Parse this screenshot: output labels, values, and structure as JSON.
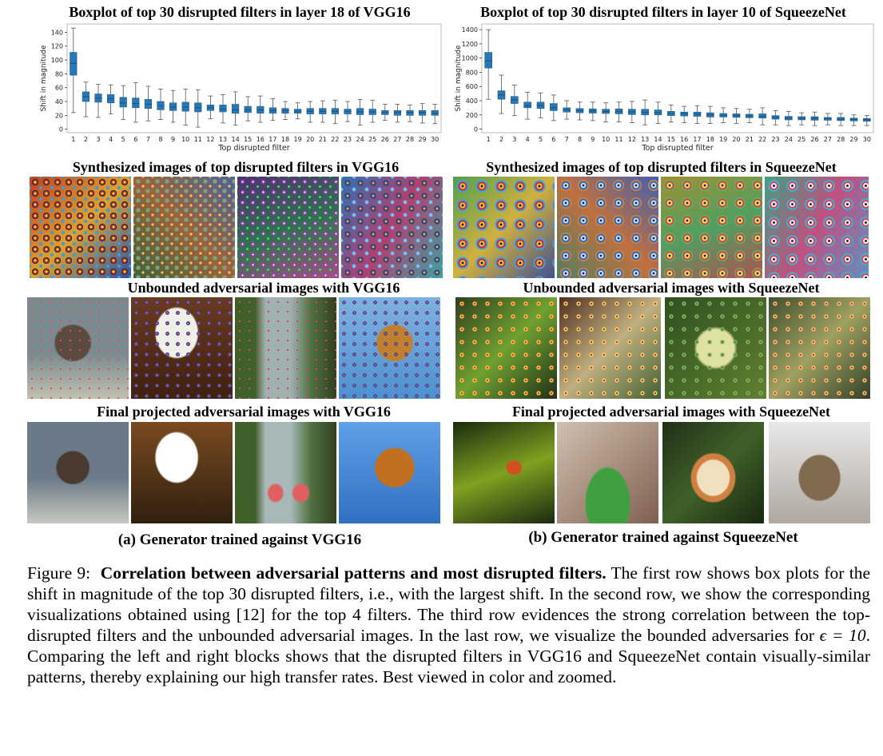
{
  "figures": {
    "vgg": {
      "plot_title": "Boxplot of top 30 disrupted filters in layer 18 of VGG16",
      "row2_title": "Synthesized images of top disrupted filters in VGG16",
      "row3_title": "Unbounded adversarial images with VGG16",
      "row4_title": "Final projected adversarial images with VGG16",
      "subcaption": "(a) Generator trained against VGG16"
    },
    "squeeze": {
      "plot_title": "Boxplot of top 30 disrupted filters in layer 10 of SqueezeNet",
      "row2_title": "Synthesized images of top disrupted filters in SqueezeNet",
      "row3_title": "Unbounded adversarial images with SqueezeNet",
      "row4_title": "Final projected adversarial images with SqueezeNet",
      "subcaption": "(b) Generator trained against SqueezeNet"
    }
  },
  "caption": {
    "label": "Figure 9:",
    "bold": "Correlation between adversarial patterns and most disrupted filters.",
    "body_1": " The first row shows box plots for the shift in magnitude of the top 30 disrupted filters, i.e., with the largest shift. In the second row, we show the corresponding visualizations obtained using [12] for the top 4 filters. The third row evidences the strong correlation between the top-disrupted filters and the unbounded adversarial images. In the last row, we visualize the bounded adversaries for ",
    "epsilon": "ϵ = 10",
    "body_2": ". Comparing the left and right blocks shows that the disrupted filters in VGG16 and SqueezeNet contain visually-similar patterns, thereby explaining our high transfer rates. Best viewed in color and zoomed."
  },
  "colors": {
    "box": "#2878b5",
    "whisker": "#555555"
  },
  "chart_data": [
    {
      "type": "boxplot",
      "xlabel": "Top disrupted filter",
      "ylabel": "Shift in magnitude",
      "categories": [
        "1",
        "2",
        "3",
        "4",
        "5",
        "6",
        "7",
        "8",
        "9",
        "10",
        "11",
        "12",
        "13",
        "14",
        "15",
        "16",
        "17",
        "18",
        "19",
        "20",
        "21",
        "22",
        "23",
        "24",
        "25",
        "26",
        "27",
        "28",
        "29",
        "30"
      ],
      "yticks": [
        0,
        20,
        40,
        60,
        80,
        100,
        120,
        140
      ],
      "ylim": [
        -5,
        152
      ],
      "boxes": [
        {
          "q1": 78,
          "med": 95,
          "q3": 111,
          "lo": 24,
          "hi": 146
        },
        {
          "q1": 40,
          "med": 47,
          "q3": 54,
          "lo": 18,
          "hi": 68
        },
        {
          "q1": 39,
          "med": 45,
          "q3": 51,
          "lo": 17,
          "hi": 65
        },
        {
          "q1": 38,
          "med": 44,
          "q3": 50,
          "lo": 22,
          "hi": 64
        },
        {
          "q1": 32,
          "med": 38,
          "q3": 46,
          "lo": 14,
          "hi": 63
        },
        {
          "q1": 31,
          "med": 37,
          "q3": 45,
          "lo": 10,
          "hi": 67
        },
        {
          "q1": 30,
          "med": 36,
          "q3": 43,
          "lo": 12,
          "hi": 62
        },
        {
          "q1": 28,
          "med": 34,
          "q3": 40,
          "lo": 14,
          "hi": 58
        },
        {
          "q1": 27,
          "med": 32,
          "q3": 38,
          "lo": 10,
          "hi": 56
        },
        {
          "q1": 26,
          "med": 32,
          "q3": 39,
          "lo": 6,
          "hi": 58
        },
        {
          "q1": 25,
          "med": 31,
          "q3": 38,
          "lo": 3,
          "hi": 57
        },
        {
          "q1": 27,
          "med": 31,
          "q3": 35,
          "lo": 15,
          "hi": 48
        },
        {
          "q1": 25,
          "med": 29,
          "q3": 35,
          "lo": 9,
          "hi": 50
        },
        {
          "q1": 23,
          "med": 28,
          "q3": 36,
          "lo": 6,
          "hi": 54
        },
        {
          "q1": 24,
          "med": 28,
          "q3": 33,
          "lo": 12,
          "hi": 47
        },
        {
          "q1": 23,
          "med": 28,
          "q3": 33,
          "lo": 10,
          "hi": 48
        },
        {
          "q1": 23,
          "med": 27,
          "q3": 31,
          "lo": 13,
          "hi": 44
        },
        {
          "q1": 23,
          "med": 27,
          "q3": 30,
          "lo": 14,
          "hi": 40
        },
        {
          "q1": 23,
          "med": 26,
          "q3": 29,
          "lo": 15,
          "hi": 38
        },
        {
          "q1": 22,
          "med": 26,
          "q3": 30,
          "lo": 10,
          "hi": 40
        },
        {
          "q1": 22,
          "med": 26,
          "q3": 30,
          "lo": 10,
          "hi": 41
        },
        {
          "q1": 22,
          "med": 26,
          "q3": 30,
          "lo": 8,
          "hi": 42
        },
        {
          "q1": 22,
          "med": 26,
          "q3": 29,
          "lo": 11,
          "hi": 40
        },
        {
          "q1": 21,
          "med": 25,
          "q3": 30,
          "lo": 6,
          "hi": 43
        },
        {
          "q1": 21,
          "med": 25,
          "q3": 29,
          "lo": 10,
          "hi": 42
        },
        {
          "q1": 21,
          "med": 24,
          "q3": 27,
          "lo": 13,
          "hi": 36
        },
        {
          "q1": 20,
          "med": 24,
          "q3": 27,
          "lo": 10,
          "hi": 36
        },
        {
          "q1": 20,
          "med": 24,
          "q3": 27,
          "lo": 11,
          "hi": 35
        },
        {
          "q1": 20,
          "med": 24,
          "q3": 27,
          "lo": 9,
          "hi": 37
        },
        {
          "q1": 20,
          "med": 23,
          "q3": 27,
          "lo": 8,
          "hi": 36
        }
      ]
    },
    {
      "type": "boxplot",
      "xlabel": "Top disrupted filter",
      "ylabel": "Shift in magnitude",
      "categories": [
        "1",
        "2",
        "3",
        "4",
        "5",
        "6",
        "7",
        "8",
        "9",
        "10",
        "11",
        "12",
        "13",
        "14",
        "15",
        "16",
        "17",
        "18",
        "19",
        "20",
        "21",
        "22",
        "23",
        "24",
        "25",
        "26",
        "27",
        "28",
        "29",
        "30"
      ],
      "yticks": [
        0,
        200,
        400,
        600,
        800,
        1000,
        1200,
        1400
      ],
      "ylim": [
        -50,
        1480
      ],
      "boxes": [
        {
          "q1": 860,
          "med": 960,
          "q3": 1080,
          "lo": 420,
          "hi": 1400
        },
        {
          "q1": 420,
          "med": 480,
          "q3": 540,
          "lo": 220,
          "hi": 760
        },
        {
          "q1": 360,
          "med": 410,
          "q3": 460,
          "lo": 190,
          "hi": 620
        },
        {
          "q1": 300,
          "med": 330,
          "q3": 380,
          "lo": 140,
          "hi": 520
        },
        {
          "q1": 290,
          "med": 330,
          "q3": 380,
          "lo": 160,
          "hi": 510
        },
        {
          "q1": 260,
          "med": 300,
          "q3": 360,
          "lo": 120,
          "hi": 480
        },
        {
          "q1": 240,
          "med": 270,
          "q3": 300,
          "lo": 140,
          "hi": 400
        },
        {
          "q1": 230,
          "med": 260,
          "q3": 290,
          "lo": 130,
          "hi": 380
        },
        {
          "q1": 225,
          "med": 255,
          "q3": 285,
          "lo": 120,
          "hi": 380
        },
        {
          "q1": 220,
          "med": 250,
          "q3": 280,
          "lo": 100,
          "hi": 370
        },
        {
          "q1": 215,
          "med": 245,
          "q3": 285,
          "lo": 100,
          "hi": 380
        },
        {
          "q1": 205,
          "med": 240,
          "q3": 280,
          "lo": 90,
          "hi": 390
        },
        {
          "q1": 200,
          "med": 235,
          "q3": 280,
          "lo": 60,
          "hi": 410
        },
        {
          "q1": 200,
          "med": 230,
          "q3": 270,
          "lo": 80,
          "hi": 380
        },
        {
          "q1": 190,
          "med": 220,
          "q3": 250,
          "lo": 100,
          "hi": 340
        },
        {
          "q1": 185,
          "med": 215,
          "q3": 240,
          "lo": 90,
          "hi": 320
        },
        {
          "q1": 180,
          "med": 210,
          "q3": 240,
          "lo": 80,
          "hi": 330
        },
        {
          "q1": 170,
          "med": 200,
          "q3": 230,
          "lo": 80,
          "hi": 320
        },
        {
          "q1": 170,
          "med": 195,
          "q3": 220,
          "lo": 90,
          "hi": 300
        },
        {
          "q1": 165,
          "med": 190,
          "q3": 215,
          "lo": 80,
          "hi": 290
        },
        {
          "q1": 160,
          "med": 185,
          "q3": 210,
          "lo": 90,
          "hi": 280
        },
        {
          "q1": 155,
          "med": 180,
          "q3": 215,
          "lo": 60,
          "hi": 300
        },
        {
          "q1": 140,
          "med": 165,
          "q3": 190,
          "lo": 60,
          "hi": 260
        },
        {
          "q1": 130,
          "med": 155,
          "q3": 180,
          "lo": 50,
          "hi": 250
        },
        {
          "q1": 130,
          "med": 150,
          "q3": 175,
          "lo": 60,
          "hi": 230
        },
        {
          "q1": 125,
          "med": 150,
          "q3": 175,
          "lo": 50,
          "hi": 240
        },
        {
          "q1": 125,
          "med": 145,
          "q3": 165,
          "lo": 60,
          "hi": 220
        },
        {
          "q1": 120,
          "med": 140,
          "q3": 165,
          "lo": 50,
          "hi": 220
        },
        {
          "q1": 115,
          "med": 135,
          "q3": 155,
          "lo": 50,
          "hi": 200
        },
        {
          "q1": 110,
          "med": 130,
          "q3": 150,
          "lo": 50,
          "hi": 190
        }
      ]
    }
  ]
}
